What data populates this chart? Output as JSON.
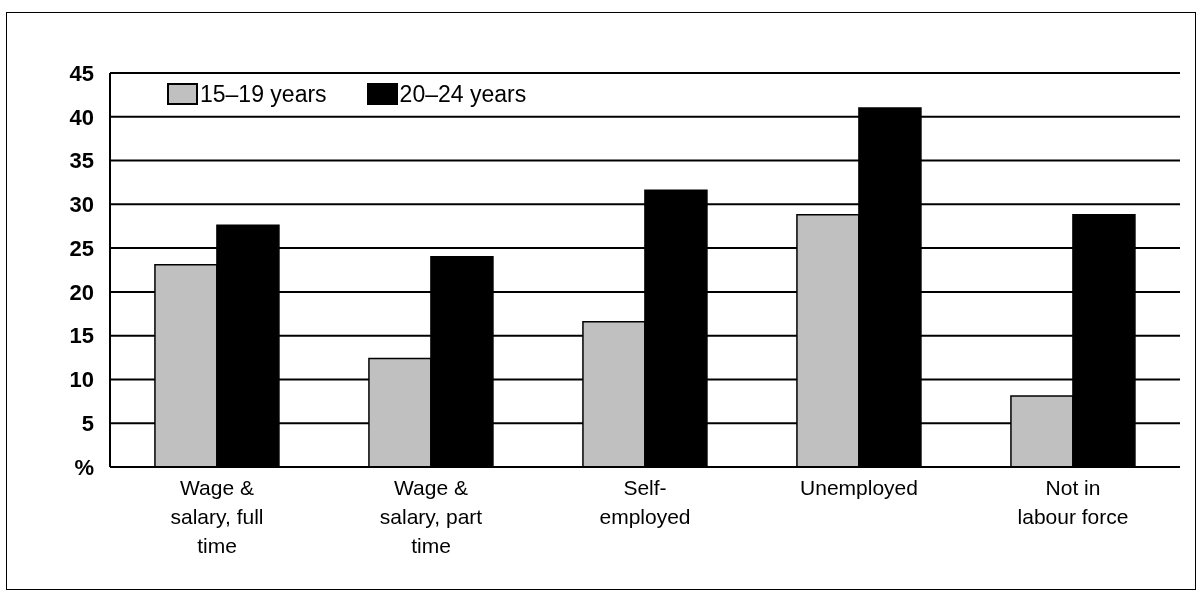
{
  "chart_data": {
    "type": "bar",
    "categories": [
      "Wage & salary, full time",
      "Wage & salary, part time",
      "Self-employed",
      "Unemployed",
      "Not in labour force"
    ],
    "series": [
      {
        "name": "15–19 years",
        "color": "#c0c0c0",
        "values": [
          23.1,
          12.4,
          16.6,
          28.8,
          8.1
        ]
      },
      {
        "name": "20–24 years",
        "color": "#000000",
        "values": [
          27.6,
          24.0,
          31.6,
          41.0,
          28.8
        ]
      }
    ],
    "ylim": [
      0,
      45
    ],
    "yticks": [
      {
        "value": 0,
        "label": "%"
      },
      5,
      10,
      15,
      20,
      25,
      30,
      35,
      40,
      45
    ],
    "grid": "y",
    "legend": "top left"
  }
}
